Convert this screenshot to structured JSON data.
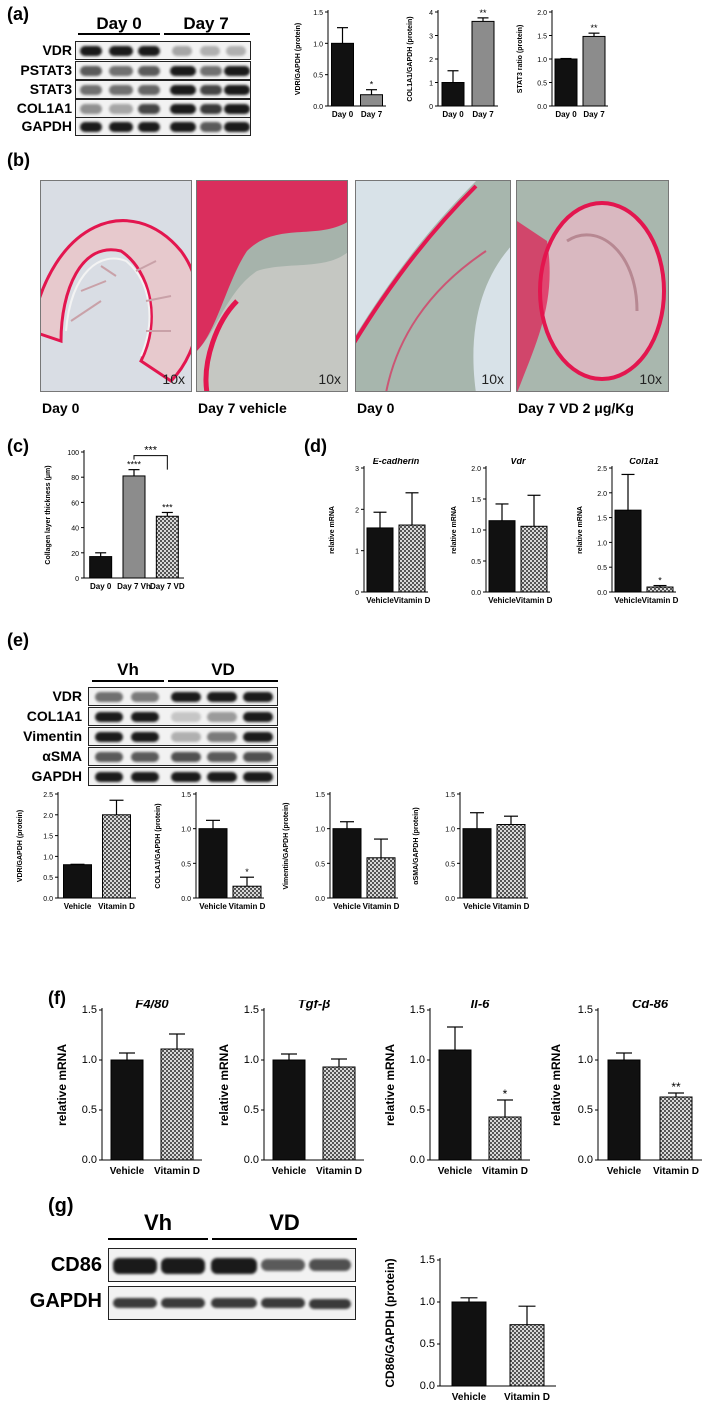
{
  "panels": {
    "a": "(a)",
    "b": "(b)",
    "c": "(c)",
    "d": "(d)",
    "e": "(e)",
    "f": "(f)",
    "g": "(g)"
  },
  "blot_a": {
    "groups": [
      "Day 0",
      "Day 7"
    ],
    "rows": [
      "VDR",
      "PSTAT3",
      "STAT3",
      "COL1A1",
      "GAPDH"
    ]
  },
  "blot_e": {
    "groups": [
      "Vh",
      "VD"
    ],
    "rows": [
      "VDR",
      "COL1A1",
      "Vimentin",
      "αSMA",
      "GAPDH"
    ]
  },
  "blot_g": {
    "groups": [
      "Vh",
      "VD"
    ],
    "rows": [
      "CD86",
      "GAPDH"
    ]
  },
  "micrographs": {
    "magnification": "10x",
    "captions": [
      "Day 0",
      "Day 7 vehicle",
      "Day 0",
      "Day 7 VD 2 μg/Kg"
    ]
  },
  "colors": {
    "black_bar": "#111111",
    "grey_bar": "#8c8c8c",
    "tissue_pink": "#e3164f",
    "tissue_green": "#7e9c93"
  },
  "chart_data": [
    {
      "id": "a1",
      "type": "bar",
      "ylabel": "VDR/GAPDH (protein)",
      "categories": [
        "Day 0",
        "Day 7"
      ],
      "values": [
        1.0,
        0.18
      ],
      "errors": [
        0.25,
        0.08
      ],
      "ylim": [
        0,
        1.5
      ],
      "yticks": [
        "0.0",
        "0.5",
        "1.0",
        "1.5"
      ],
      "sig": [
        "",
        "*"
      ],
      "fills": [
        "black",
        "grey"
      ]
    },
    {
      "id": "a2",
      "type": "bar",
      "ylabel": "COL1A1/GAPDH (protein)",
      "categories": [
        "Day 0",
        "Day 7"
      ],
      "values": [
        1.0,
        3.6
      ],
      "errors": [
        0.5,
        0.15
      ],
      "ylim": [
        0,
        4
      ],
      "yticks": [
        "0",
        "1",
        "2",
        "3",
        "4"
      ],
      "sig": [
        "",
        "**"
      ],
      "fills": [
        "black",
        "grey"
      ]
    },
    {
      "id": "a3",
      "type": "bar",
      "ylabel": "STAT3 ratio (protein)",
      "categories": [
        "Day 0",
        "Day 7"
      ],
      "values": [
        1.0,
        1.48
      ],
      "errors": [
        0.01,
        0.07
      ],
      "ylim": [
        0,
        2.0
      ],
      "yticks": [
        "0.0",
        "0.5",
        "1.0",
        "1.5",
        "2.0"
      ],
      "sig": [
        "",
        "**"
      ],
      "fills": [
        "black",
        "grey"
      ]
    },
    {
      "id": "c",
      "type": "bar",
      "ylabel": "Collagen layer thickness (μm)",
      "categories": [
        "Day 0",
        "Day 7 Vh",
        "Day 7 VD"
      ],
      "values": [
        17,
        81,
        49
      ],
      "errors": [
        3,
        5,
        3
      ],
      "ylim": [
        0,
        100
      ],
      "yticks": [
        "0",
        "20",
        "40",
        "60",
        "80",
        "100"
      ],
      "sig": [
        "",
        "****",
        "***"
      ],
      "bracket": "***",
      "fills": [
        "black",
        "grey",
        "check"
      ]
    },
    {
      "id": "d1",
      "type": "bar",
      "title": "E-cadherin",
      "ylabel": "relative mRNA",
      "categories": [
        "Vehicle",
        "Vitamin D"
      ],
      "values": [
        1.55,
        1.62
      ],
      "errors": [
        0.38,
        0.78
      ],
      "ylim": [
        0,
        3
      ],
      "yticks": [
        "0",
        "1",
        "2",
        "3"
      ],
      "sig": [
        "",
        ""
      ],
      "fills": [
        "black",
        "check"
      ]
    },
    {
      "id": "d2",
      "type": "bar",
      "title": "Vdr",
      "ylabel": "relative mRNA",
      "categories": [
        "Vehicle",
        "Vitamin D"
      ],
      "values": [
        1.15,
        1.06
      ],
      "errors": [
        0.27,
        0.5
      ],
      "ylim": [
        0,
        2.0
      ],
      "yticks": [
        "0.0",
        "0.5",
        "1.0",
        "1.5",
        "2.0"
      ],
      "sig": [
        "",
        ""
      ],
      "fills": [
        "black",
        "check"
      ]
    },
    {
      "id": "d3",
      "type": "bar",
      "title": "Col1a1",
      "ylabel": "relative mRNA",
      "categories": [
        "Vehicle",
        "Vitamin D"
      ],
      "values": [
        1.65,
        0.1
      ],
      "errors": [
        0.72,
        0.03
      ],
      "ylim": [
        0,
        2.5
      ],
      "yticks": [
        "0.0",
        "0.5",
        "1.0",
        "1.5",
        "2.0",
        "2.5"
      ],
      "sig": [
        "",
        "*"
      ],
      "fills": [
        "black",
        "check"
      ]
    },
    {
      "id": "e1",
      "type": "bar",
      "ylabel": "VDR/GAPDH (protein)",
      "categories": [
        "Vehicle",
        "Vitamin D"
      ],
      "values": [
        0.8,
        2.0
      ],
      "errors": [
        0.01,
        0.35
      ],
      "ylim": [
        0,
        2.5
      ],
      "yticks": [
        "0.0",
        "0.5",
        "1.0",
        "1.5",
        "2.0",
        "2.5"
      ],
      "sig": [
        "",
        ""
      ],
      "fills": [
        "black",
        "check"
      ]
    },
    {
      "id": "e2",
      "type": "bar",
      "ylabel": "COL1A1/GAPDH (protein)",
      "categories": [
        "Vehicle",
        "Vitamin D"
      ],
      "values": [
        1.0,
        0.17
      ],
      "errors": [
        0.12,
        0.13
      ],
      "ylim": [
        0,
        1.5
      ],
      "yticks": [
        "0.0",
        "0.5",
        "1.0",
        "1.5"
      ],
      "sig": [
        "",
        "*"
      ],
      "fills": [
        "black",
        "check"
      ]
    },
    {
      "id": "e3",
      "type": "bar",
      "ylabel": "Vimentin/GAPDH (protein)",
      "categories": [
        "Vehicle",
        "Vitamin D"
      ],
      "values": [
        1.0,
        0.58
      ],
      "errors": [
        0.1,
        0.27
      ],
      "ylim": [
        0,
        1.5
      ],
      "yticks": [
        "0.0",
        "0.5",
        "1.0",
        "1.5"
      ],
      "sig": [
        "",
        ""
      ],
      "fills": [
        "black",
        "check"
      ]
    },
    {
      "id": "e4",
      "type": "bar",
      "ylabel": "αSMA/GAPDH (protein)",
      "categories": [
        "Vehicle",
        "Vitamin D"
      ],
      "values": [
        1.0,
        1.06
      ],
      "errors": [
        0.23,
        0.12
      ],
      "ylim": [
        0,
        1.5
      ],
      "yticks": [
        "0.0",
        "0.5",
        "1.0",
        "1.5"
      ],
      "sig": [
        "",
        ""
      ],
      "fills": [
        "black",
        "check"
      ]
    },
    {
      "id": "f1",
      "type": "bar",
      "title": "F4/80",
      "ylabel": "relative mRNA",
      "categories": [
        "Vehicle",
        "Vitamin D"
      ],
      "values": [
        1.0,
        1.11
      ],
      "errors": [
        0.07,
        0.15
      ],
      "ylim": [
        0,
        1.5
      ],
      "yticks": [
        "0.0",
        "0.5",
        "1.0",
        "1.5"
      ],
      "sig": [
        "",
        ""
      ],
      "fills": [
        "black",
        "check"
      ]
    },
    {
      "id": "f2",
      "type": "bar",
      "title": "Tgf-β",
      "ylabel": "relative mRNA",
      "categories": [
        "Vehicle",
        "Vitamin D"
      ],
      "values": [
        1.0,
        0.93
      ],
      "errors": [
        0.06,
        0.08
      ],
      "ylim": [
        0,
        1.5
      ],
      "yticks": [
        "0.0",
        "0.5",
        "1.0",
        "1.5"
      ],
      "sig": [
        "",
        ""
      ],
      "fills": [
        "black",
        "check"
      ]
    },
    {
      "id": "f3",
      "type": "bar",
      "title": "Il-6",
      "ylabel": "relative mRNA",
      "categories": [
        "Vehicle",
        "Vitamin D"
      ],
      "values": [
        1.1,
        0.43
      ],
      "errors": [
        0.23,
        0.17
      ],
      "ylim": [
        0,
        1.5
      ],
      "yticks": [
        "0.0",
        "0.5",
        "1.0",
        "1.5"
      ],
      "sig": [
        "",
        "*"
      ],
      "fills": [
        "black",
        "check"
      ]
    },
    {
      "id": "f4",
      "type": "bar",
      "title": "Cd-86",
      "ylabel": "relative mRNA",
      "categories": [
        "Vehicle",
        "Vitamin D"
      ],
      "values": [
        1.0,
        0.63
      ],
      "errors": [
        0.07,
        0.04
      ],
      "ylim": [
        0,
        1.5
      ],
      "yticks": [
        "0.0",
        "0.5",
        "1.0",
        "1.5"
      ],
      "sig": [
        "",
        "**"
      ],
      "fills": [
        "black",
        "check"
      ]
    },
    {
      "id": "g",
      "type": "bar",
      "ylabel": "CD86/GAPDH (protein)",
      "categories": [
        "Vehicle",
        "Vitamin D"
      ],
      "values": [
        1.0,
        0.73
      ],
      "errors": [
        0.05,
        0.22
      ],
      "ylim": [
        0,
        1.5
      ],
      "yticks": [
        "0.0",
        "0.5",
        "1.0",
        "1.5"
      ],
      "sig": [
        "",
        ""
      ],
      "fills": [
        "black",
        "check"
      ]
    }
  ]
}
